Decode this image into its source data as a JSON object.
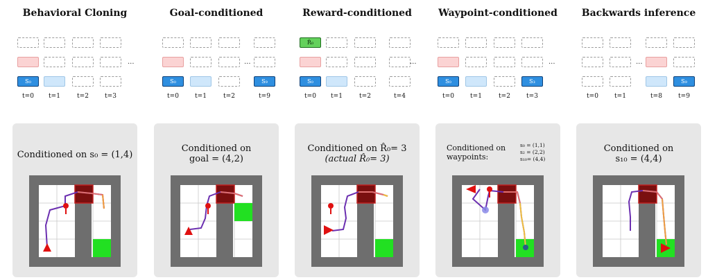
{
  "panels": [
    {
      "title": "Behavioral Cloning",
      "caption_line1": "Conditioned on s₀ = (1,4)",
      "caption_line2": "",
      "seq": {
        "labels": [
          "t=0",
          "t=1",
          "t=2",
          "t=3"
        ],
        "ellipsis": "...",
        "token": "S₀"
      }
    },
    {
      "title": "Goal-conditioned",
      "caption_line1": "Conditioned on",
      "caption_line2": "goal = (4,2)",
      "seq": {
        "labels": [
          "t=0",
          "t=1",
          "t=2",
          "t=9"
        ],
        "ellipsis": "...",
        "token": "S₀",
        "token_last": "S₉"
      }
    },
    {
      "title": "Reward-conditioned",
      "caption_line1": "Conditioned on  R̂₀= 3",
      "caption_line2": "(actual  R̂₀= 3)",
      "seq": {
        "labels": [
          "t=0",
          "t=1",
          "t=2",
          "t=4"
        ],
        "ellipsis": "...",
        "token": "S₀",
        "reward_token": "R̂₀"
      }
    },
    {
      "title": "Waypoint-conditioned",
      "caption_line1": "Conditioned on",
      "caption_line2": "waypoints:",
      "waypoints": [
        "s₀ = (1,1)",
        "s₂ = (2,2)",
        "s₁₀= (4,4)"
      ],
      "seq": {
        "labels": [
          "t=0",
          "t=1",
          "t=2",
          "t=3"
        ],
        "ellipsis": "...",
        "token": "S₀",
        "token_last": "S₃"
      }
    },
    {
      "title": "Backwards inference",
      "caption_line1": "Conditioned on",
      "caption_line2": "s₁₀ = (4,4)",
      "seq": {
        "labels": [
          "t=0",
          "t=1",
          "t=8",
          "t=9"
        ],
        "ellipsis": "...",
        "token_last": "S₉"
      }
    }
  ],
  "colors": {
    "wall": "#6e6e6e",
    "goal": "#22e022",
    "door": "#7a0f0f",
    "agent": "#e01010",
    "card": "#e7e7e7"
  }
}
